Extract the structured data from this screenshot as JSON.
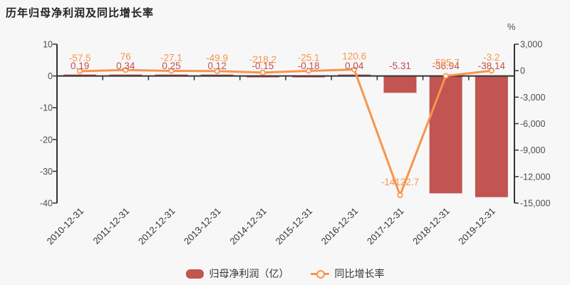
{
  "title": "历年归母净利润及同比增长率",
  "legend": {
    "bar": "归母净利润（亿）",
    "line": "同比增长率"
  },
  "colors": {
    "background": "#f7f7f7",
    "bar": "#c25451",
    "bar_label": "#c0504d",
    "line": "#f7944d",
    "line_label": "#f79646",
    "axis": "#333333",
    "tick_text": "#4d4d4d",
    "x_label": "#333333",
    "marker_fill": "#fdf3e7"
  },
  "chart_data": {
    "type": "bar+line combo",
    "title": "历年归母净利润及同比增长率",
    "categories": [
      "2010-12-31",
      "2011-12-31",
      "2012-12-31",
      "2013-12-31",
      "2014-12-31",
      "2015-12-31",
      "2016-12-31",
      "2017-12-31",
      "2018-12-31",
      "2019-12-31"
    ],
    "series": [
      {
        "name": "归母净利润（亿）",
        "type": "bar",
        "axis": "left",
        "values": [
          0.19,
          0.34,
          0.25,
          0.12,
          -0.15,
          -0.18,
          0.04,
          -5.31,
          -36.94,
          -38.14
        ],
        "labels": [
          "0.19",
          "0.34",
          "0.25",
          "0.12",
          "-0.15",
          "-0.18",
          "0.04",
          "-5.31",
          "-36.94",
          "-38.14"
        ]
      },
      {
        "name": "同比增长率",
        "type": "line",
        "axis": "right",
        "values": [
          -57.5,
          76,
          -27.1,
          -49.9,
          -218.2,
          -25.1,
          120.6,
          -14122.7,
          -595.7,
          -3.2
        ],
        "labels": [
          "-57.5",
          "76",
          "-27.1",
          "-49.9",
          "-218.2",
          "-25.1",
          "120.6",
          "-14122.7",
          "-595.7",
          "-3.2"
        ]
      }
    ],
    "left_axis": {
      "min": -40,
      "max": 10,
      "tick_labels": [
        "10",
        "0",
        "-10",
        "-20",
        "-30",
        "-40"
      ],
      "tick_values": [
        10,
        0,
        -10,
        -20,
        -30,
        -40
      ]
    },
    "right_axis": {
      "min": -15000,
      "max": 3000,
      "unit": "%",
      "tick_labels": [
        "3,000",
        "0",
        "-3,000",
        "-6,000",
        "-9,000",
        "-12,000",
        "-15,000"
      ],
      "tick_values": [
        3000,
        0,
        -3000,
        -6000,
        -9000,
        -12000,
        -15000
      ]
    },
    "grid": false,
    "legend_position": "bottom"
  }
}
